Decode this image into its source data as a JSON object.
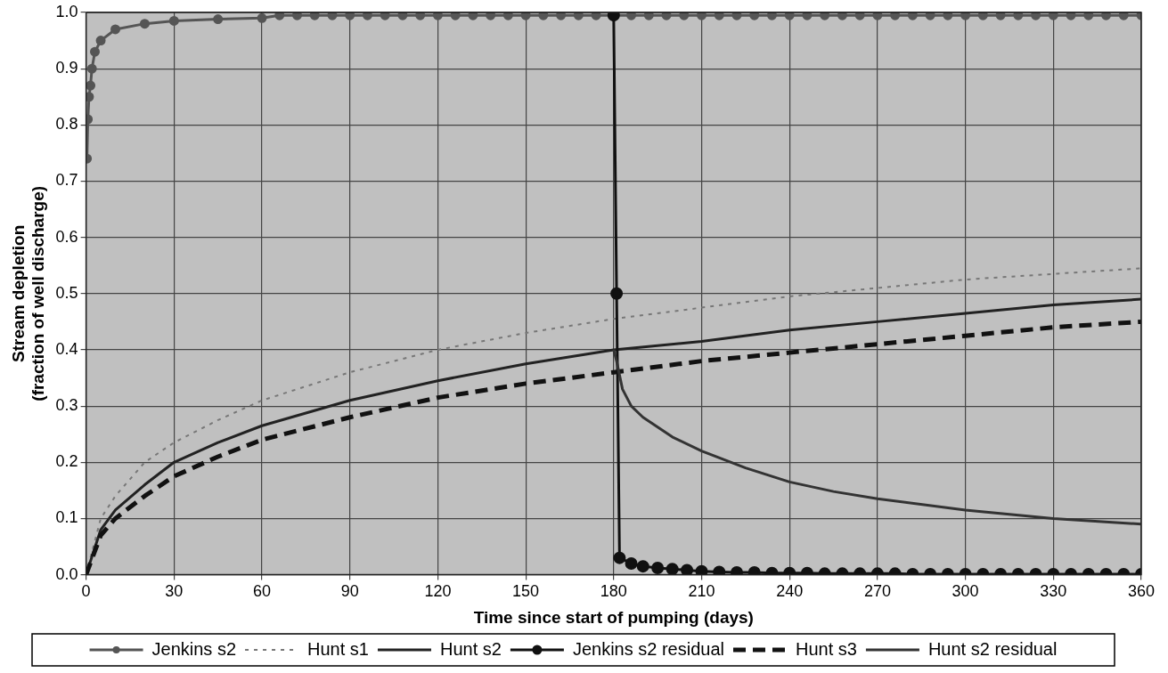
{
  "chart_data": {
    "type": "line",
    "xlabel": "Time since start of pumping (days)",
    "ylabel": "Stream depletion\n(fraction of well discharge)",
    "xlim": [
      0,
      360
    ],
    "xticks": [
      0,
      30,
      60,
      90,
      120,
      150,
      180,
      210,
      240,
      270,
      300,
      330,
      360
    ],
    "ylim": [
      0,
      1
    ],
    "yticks": [
      {
        "value": 0,
        "label": "0.0"
      },
      0.1,
      0.2,
      0.3,
      0.4,
      0.5,
      0.6,
      0.7,
      0.8,
      0.9,
      {
        "value": 1,
        "label": "1.0"
      }
    ],
    "grid": true,
    "legend": "bottom",
    "series": [
      {
        "name": "Jenkins s2",
        "color": "#555555",
        "marker": "circle",
        "line_style": "solid",
        "x": [
          0.3,
          0.6,
          1,
          1.5,
          2,
          3,
          5,
          10,
          20,
          30,
          45,
          60,
          66,
          72,
          78,
          84,
          90,
          96,
          102,
          108,
          114,
          120,
          126,
          132,
          138,
          144,
          150,
          156,
          162,
          168,
          174,
          180,
          186,
          192,
          198,
          204,
          210,
          216,
          222,
          228,
          234,
          240,
          246,
          252,
          258,
          264,
          270,
          276,
          282,
          288,
          294,
          300,
          306,
          312,
          318,
          324,
          330,
          336,
          342,
          348,
          354,
          360
        ],
        "values": [
          0.74,
          0.81,
          0.85,
          0.87,
          0.9,
          0.93,
          0.95,
          0.97,
          0.98,
          0.985,
          0.988,
          0.99,
          0.995,
          0.995,
          0.995,
          0.995,
          0.995,
          0.995,
          0.995,
          0.995,
          0.995,
          0.995,
          0.995,
          0.995,
          0.995,
          0.995,
          0.995,
          0.995,
          0.995,
          0.995,
          0.995,
          0.995,
          0.995,
          0.995,
          0.995,
          0.995,
          0.995,
          0.995,
          0.995,
          0.995,
          0.995,
          0.995,
          0.995,
          0.995,
          0.995,
          0.995,
          0.995,
          0.995,
          0.995,
          0.995,
          0.995,
          0.995,
          0.995,
          0.995,
          0.995,
          0.995,
          0.995,
          0.995,
          0.995,
          0.995,
          0.995,
          0.995
        ]
      },
      {
        "name": "Hunt s1",
        "color": "#777777",
        "marker": "none",
        "line_style": "dotted",
        "x": [
          0,
          5,
          10,
          20,
          30,
          45,
          60,
          90,
          120,
          150,
          180,
          210,
          240,
          270,
          300,
          330,
          360
        ],
        "values": [
          0,
          0.1,
          0.14,
          0.2,
          0.235,
          0.275,
          0.31,
          0.36,
          0.4,
          0.43,
          0.455,
          0.475,
          0.495,
          0.51,
          0.525,
          0.535,
          0.545
        ]
      },
      {
        "name": "Hunt s2",
        "color": "#222222",
        "marker": "none",
        "line_style": "solid",
        "x": [
          0,
          5,
          10,
          20,
          30,
          45,
          60,
          90,
          120,
          150,
          180,
          210,
          240,
          270,
          300,
          330,
          360
        ],
        "values": [
          0,
          0.08,
          0.115,
          0.16,
          0.2,
          0.235,
          0.265,
          0.31,
          0.345,
          0.375,
          0.4,
          0.415,
          0.435,
          0.45,
          0.465,
          0.48,
          0.49
        ]
      },
      {
        "name": "Jenkins s2 residual",
        "color": "#111111",
        "marker": "circle",
        "line_style": "solid",
        "x": [
          180,
          181,
          182,
          186,
          190,
          195,
          200,
          205,
          210,
          216,
          222,
          228,
          234,
          240,
          246,
          252,
          258,
          264,
          270,
          276,
          282,
          288,
          294,
          300,
          306,
          312,
          318,
          324,
          330,
          336,
          342,
          348,
          354,
          360
        ],
        "values": [
          0.995,
          0.5,
          0.03,
          0.02,
          0.015,
          0.012,
          0.01,
          0.008,
          0.006,
          0.005,
          0.004,
          0.004,
          0.003,
          0.003,
          0.003,
          0.002,
          0.002,
          0.002,
          0.002,
          0.002,
          0.001,
          0.001,
          0.001,
          0.001,
          0.001,
          0.001,
          0.001,
          0.001,
          0.001,
          0.001,
          0.001,
          0.001,
          0.001,
          0.001
        ]
      },
      {
        "name": "Hunt s3",
        "color": "#111111",
        "marker": "none",
        "line_style": "dashed",
        "x": [
          0,
          5,
          10,
          20,
          30,
          45,
          60,
          90,
          120,
          150,
          180,
          210,
          240,
          270,
          300,
          330,
          360
        ],
        "values": [
          0,
          0.07,
          0.1,
          0.14,
          0.175,
          0.21,
          0.24,
          0.28,
          0.315,
          0.34,
          0.36,
          0.38,
          0.395,
          0.41,
          0.425,
          0.44,
          0.45
        ]
      },
      {
        "name": "Hunt s2 residual",
        "color": "#333333",
        "marker": "none",
        "line_style": "solid",
        "x": [
          180,
          181,
          183,
          186,
          190,
          200,
          210,
          225,
          240,
          255,
          270,
          300,
          330,
          360
        ],
        "values": [
          0.4,
          0.38,
          0.33,
          0.3,
          0.28,
          0.245,
          0.22,
          0.19,
          0.165,
          0.148,
          0.135,
          0.115,
          0.1,
          0.09
        ]
      }
    ]
  }
}
